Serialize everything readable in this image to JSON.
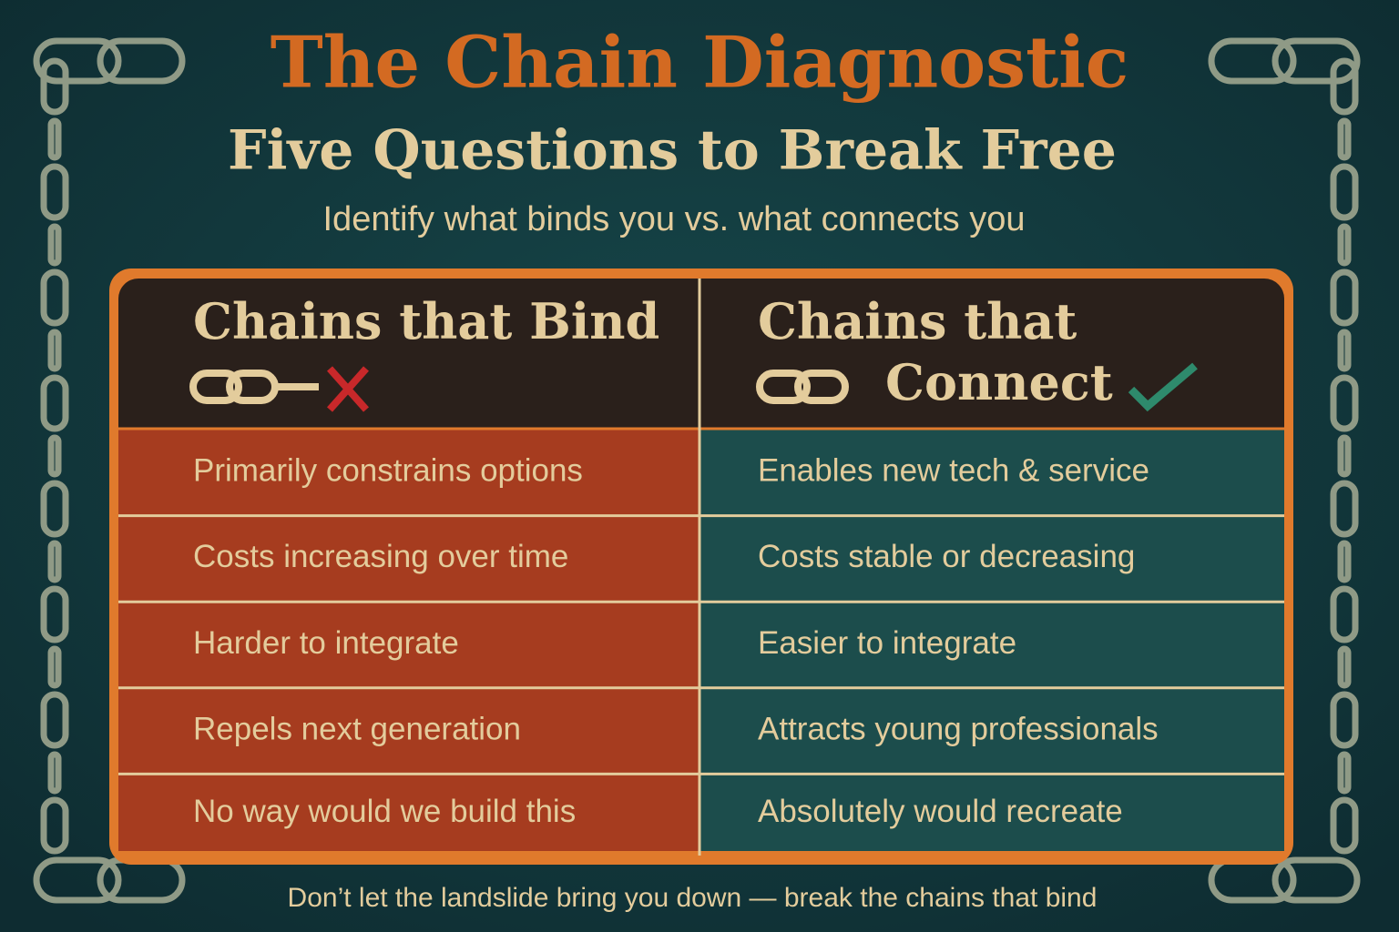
{
  "header": {
    "title": "The Chain Diagnostic",
    "subtitle": "Five Questions to Break Free",
    "tagline": "Identify what binds you vs. what connects you"
  },
  "table": {
    "headers": [
      {
        "lines": [
          "Chains that Bind"
        ]
      },
      {
        "lines": [
          "Chains that",
          "Connect"
        ]
      }
    ],
    "rows": [
      [
        "Primarily constrains options",
        "Enables new tech & service"
      ],
      [
        "Costs increasing over time",
        "Costs stable or decreasing"
      ],
      [
        "Harder to integrate",
        "Easier to integrate"
      ],
      [
        "Repels next generation",
        "Attracts young professionals"
      ],
      [
        "No way would we build this",
        "Absolutely would recreate"
      ]
    ]
  },
  "footer": "Don’t let the landslide bring you down — break the chains that bind"
}
